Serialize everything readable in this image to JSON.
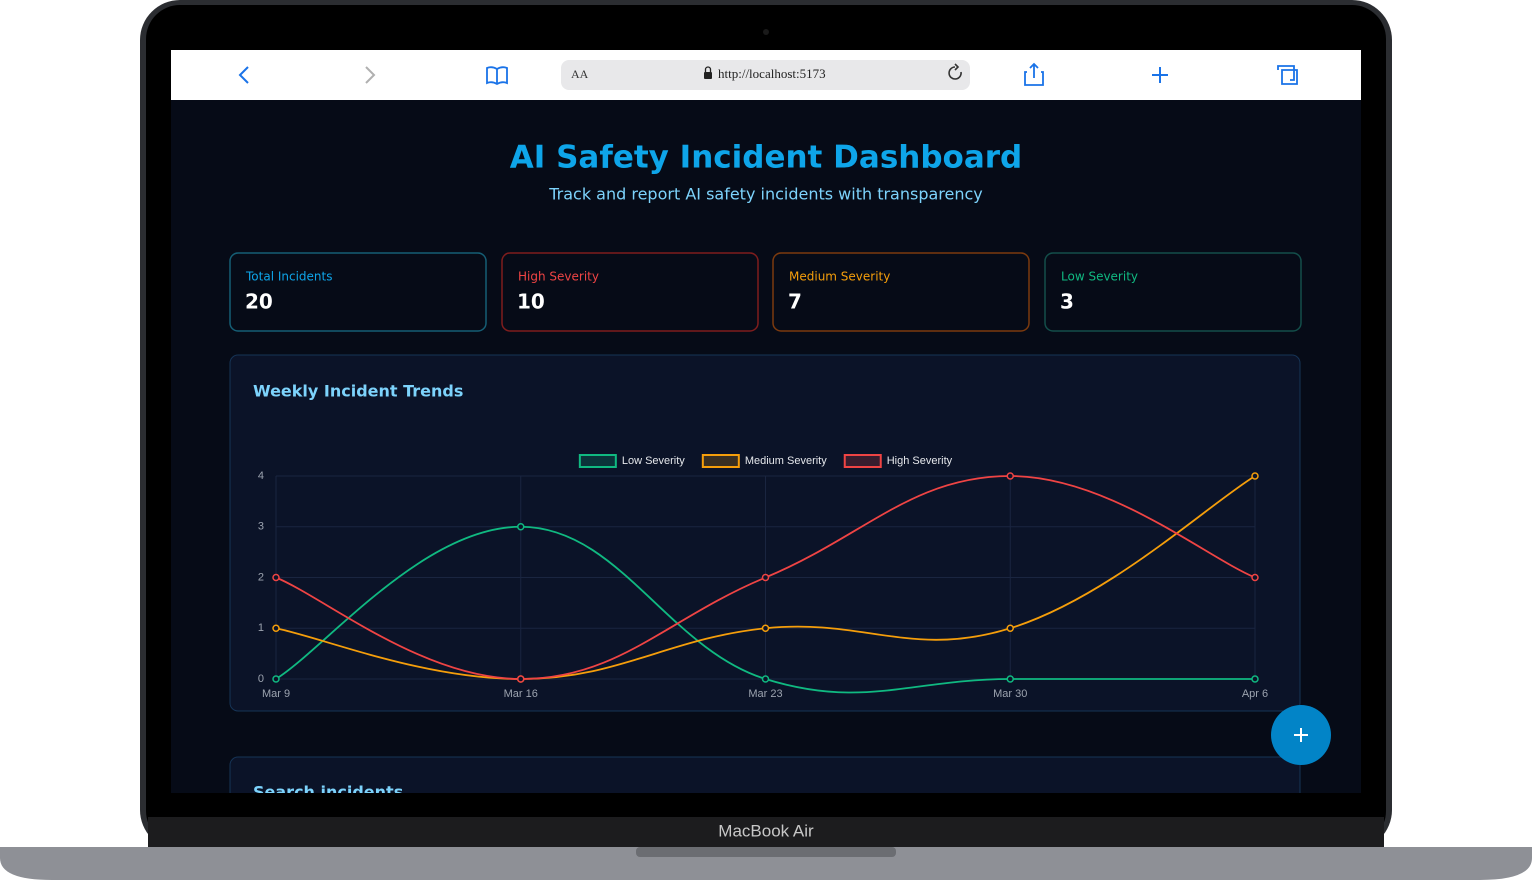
{
  "browser": {
    "aa": "AA",
    "url": "http://localhost:5173"
  },
  "device_label": "MacBook Air",
  "header": {
    "title": "AI Safety Incident Dashboard",
    "subtitle": "Track and report AI safety incidents with transparency"
  },
  "stats": [
    {
      "label": "Total Incidents",
      "value": 20,
      "color": "#0ea5e9",
      "border": "#155e75"
    },
    {
      "label": "High Severity",
      "value": 10,
      "color": "#ef4444",
      "border": "#7f1d1d"
    },
    {
      "label": "Medium Severity",
      "value": 7,
      "color": "#f59e0b",
      "border": "#7c3a0e"
    },
    {
      "label": "Low Severity",
      "value": 3,
      "color": "#10b981",
      "border": "#134e4a"
    }
  ],
  "chart_data": {
    "type": "line",
    "title": "Weekly Incident Trends",
    "categories": [
      "Mar 9",
      "Mar 16",
      "Mar 23",
      "Mar 30",
      "Apr 6"
    ],
    "series": [
      {
        "name": "Low Severity",
        "color": "#10b981",
        "values": [
          0,
          3,
          0,
          0,
          0
        ]
      },
      {
        "name": "Medium Severity",
        "color": "#f59e0b",
        "values": [
          1,
          0,
          1,
          1,
          4
        ]
      },
      {
        "name": "High Severity",
        "color": "#ef4444",
        "values": [
          2,
          0,
          2,
          4,
          2
        ]
      }
    ],
    "ylim": [
      0,
      4
    ],
    "yticks": [
      0,
      1,
      2,
      3,
      4
    ],
    "grid": true,
    "legend": "top",
    "smooth": true
  },
  "search": {
    "title": "Search incidents"
  }
}
